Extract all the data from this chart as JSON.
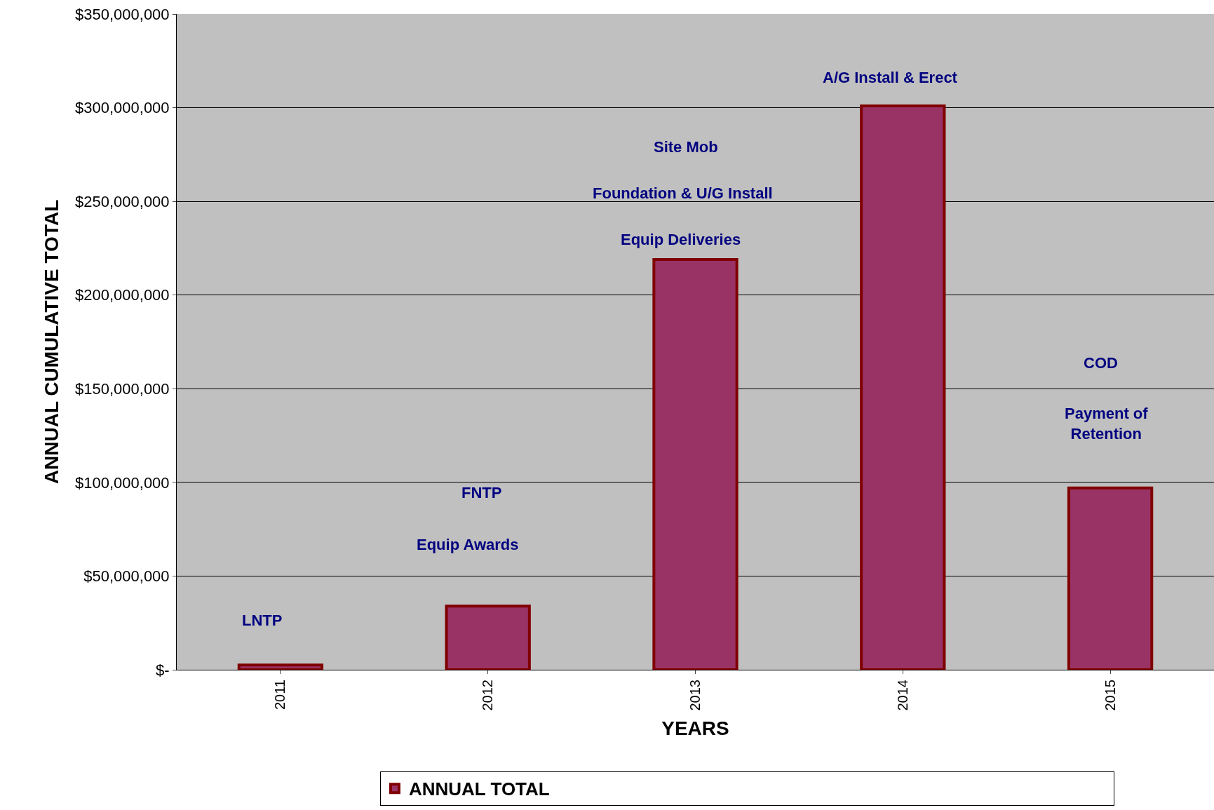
{
  "chart_data": {
    "type": "bar",
    "xlabel": "YEARS",
    "ylabel": "ANNUAL CUMULATIVE TOTAL",
    "categories": [
      "2011",
      "2012",
      "2013",
      "2014",
      "2015"
    ],
    "series": [
      {
        "name": "ANNUAL TOTAL",
        "color": "#993366",
        "values": [
          2500000,
          34000000,
          219000000,
          301000000,
          97000000
        ]
      }
    ],
    "ylim": [
      0,
      350000000
    ],
    "yticks": [
      {
        "value": 0,
        "label": "$-"
      },
      {
        "value": 50000000,
        "label": "$50,000,000"
      },
      {
        "value": 100000000,
        "label": "$100,000,000"
      },
      {
        "value": 150000000,
        "label": "$150,000,000"
      },
      {
        "value": 200000000,
        "label": "$200,000,000"
      },
      {
        "value": 250000000,
        "label": "$250,000,000"
      },
      {
        "value": 300000000,
        "label": "$300,000,000"
      },
      {
        "value": 350000000,
        "label": "$350,000,000"
      }
    ],
    "grid": "y",
    "legend": "bottom",
    "annotations": [
      "LNTP",
      "FNTP",
      "Equip Awards",
      "Site Mob",
      "Foundation & U/G Install",
      "Equip Deliveries",
      "A/G Install & Erect",
      "COD",
      "Payment of\nRetention"
    ]
  }
}
